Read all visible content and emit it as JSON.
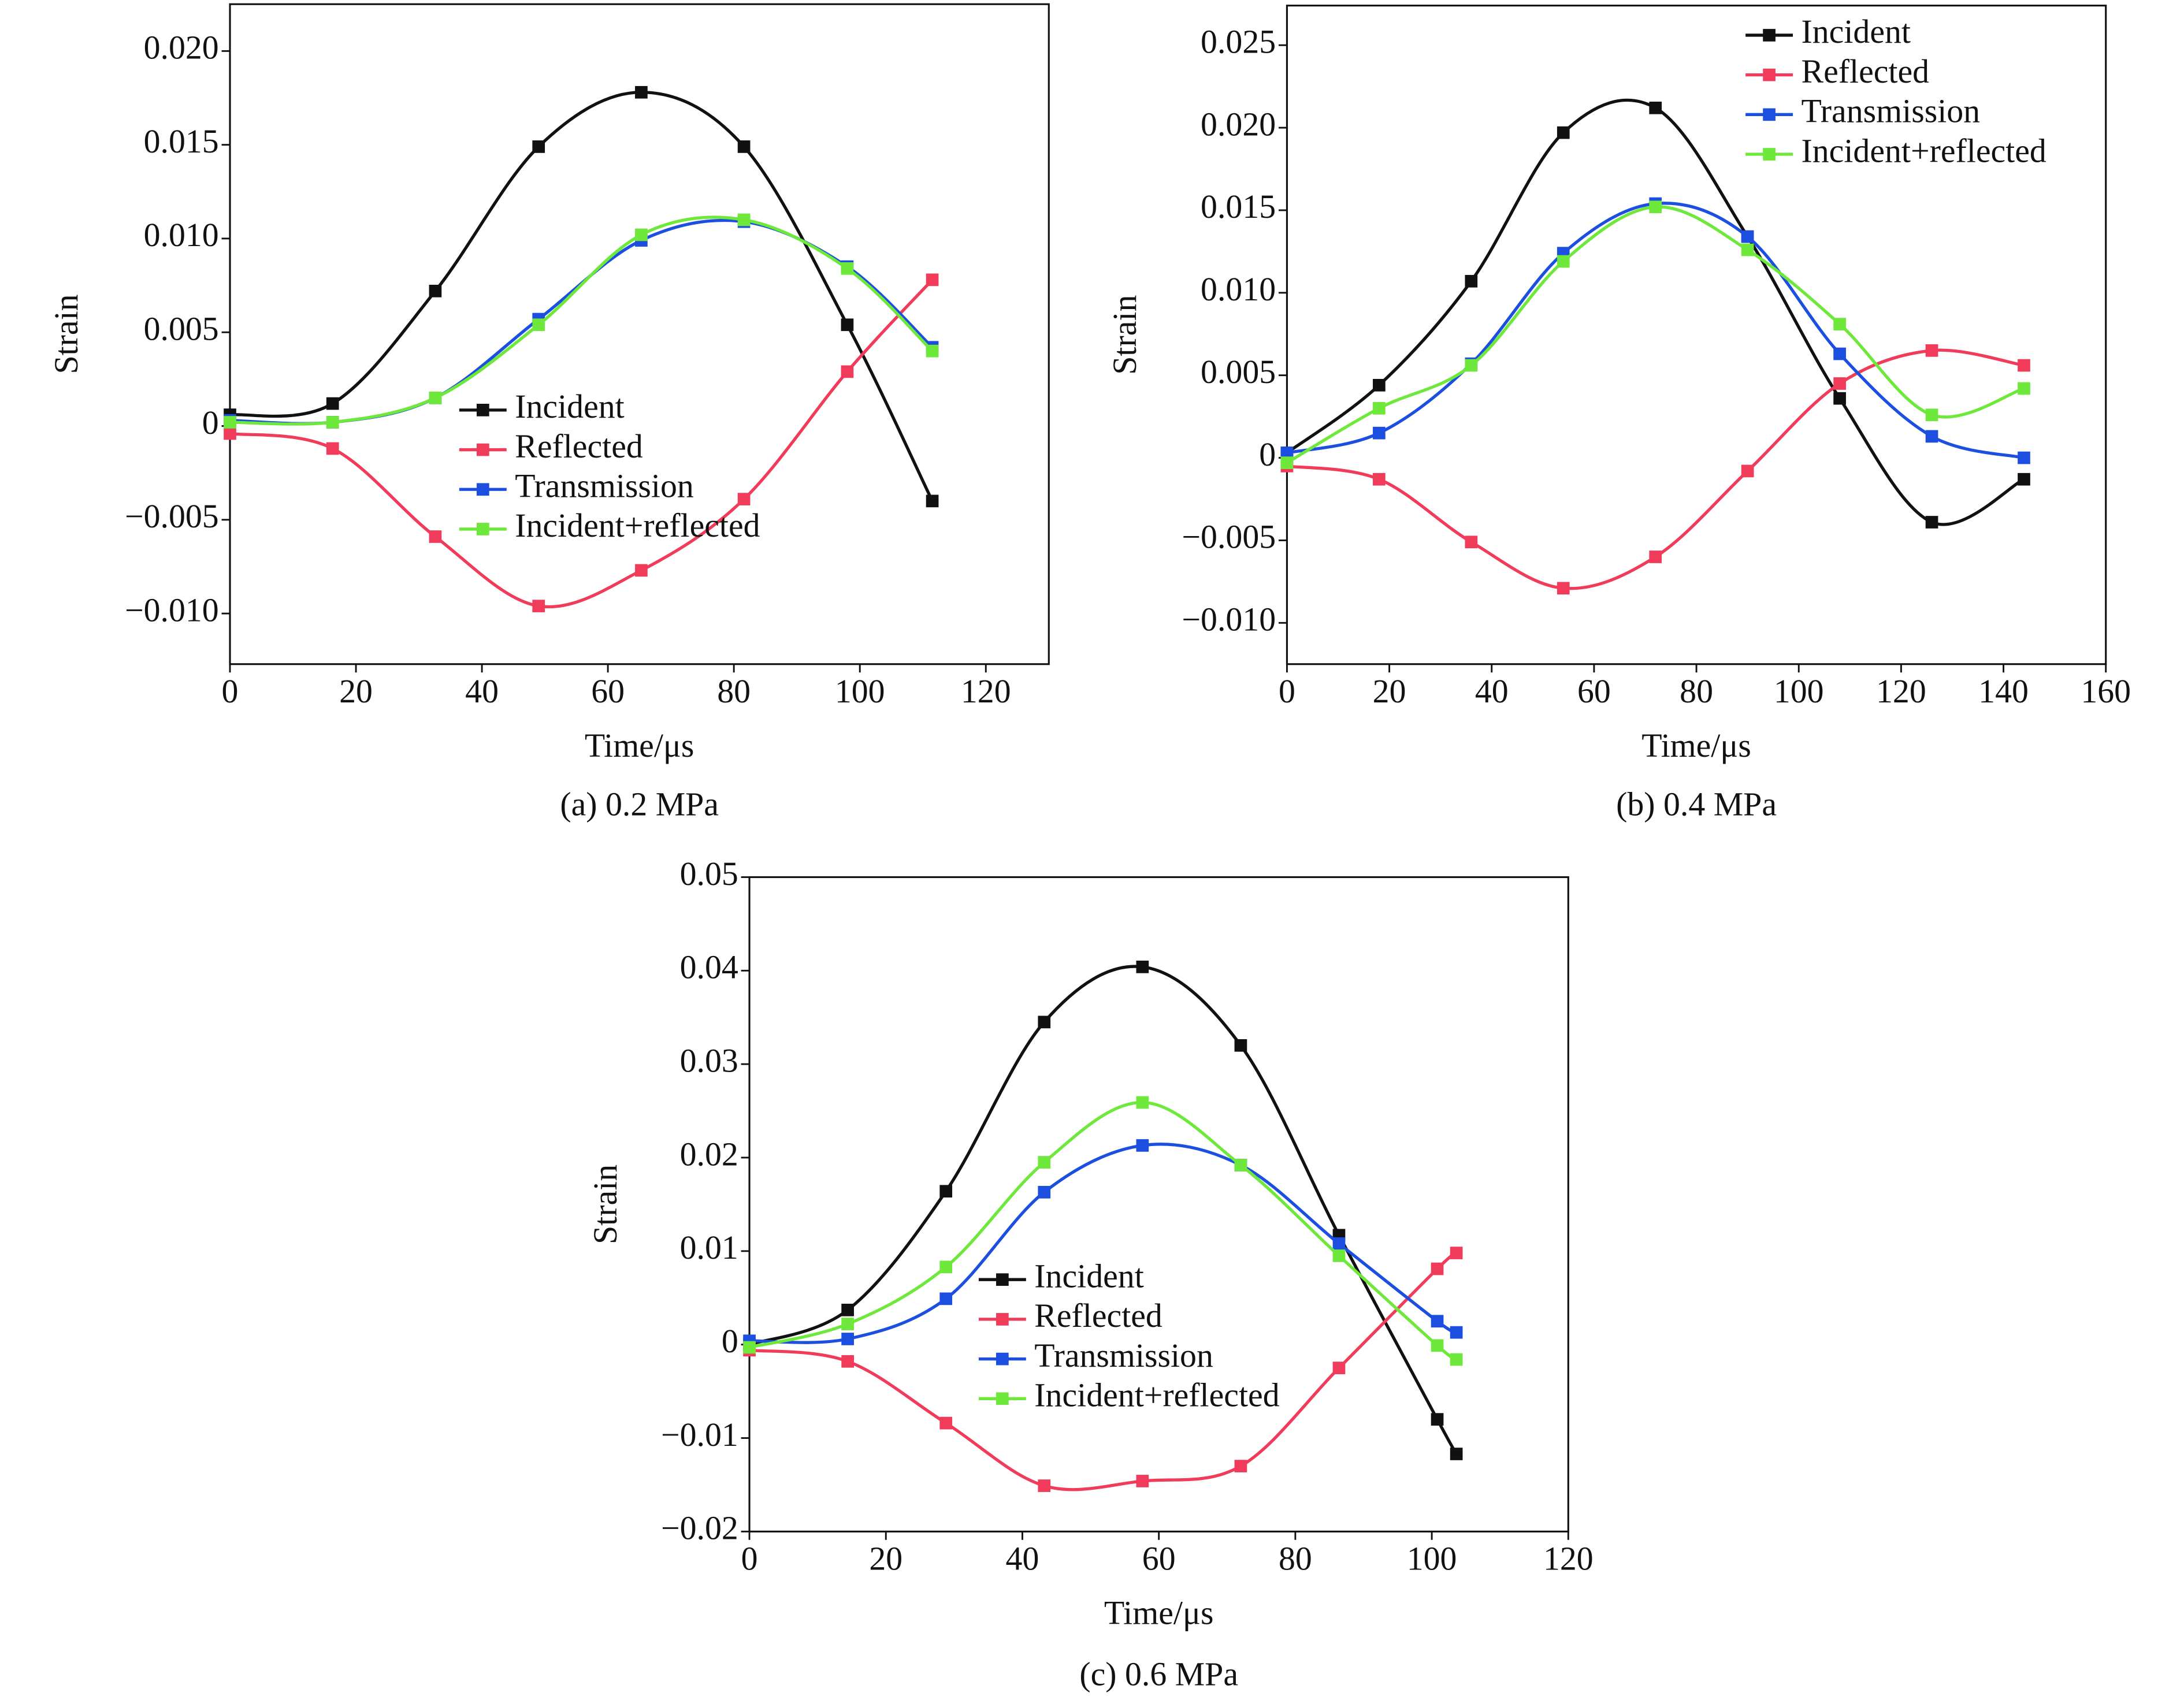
{
  "chart_data": [
    {
      "type": "line",
      "title": "(a) 0.2 MPa",
      "xlabel": "Time/μs",
      "ylabel": "Strain",
      "x": [
        0,
        16.3,
        32.6,
        49,
        65.3,
        81.6,
        98,
        111.5
      ],
      "series": [
        {
          "name": "Incident",
          "color": "#111111",
          "values": [
            0.0006,
            0.0012,
            0.0072,
            0.0149,
            0.0178,
            0.0149,
            0.0054,
            -0.004
          ]
        },
        {
          "name": "Reflected",
          "color": "#f03c5a",
          "values": [
            -0.0004,
            -0.0012,
            -0.0059,
            -0.0096,
            -0.0077,
            -0.0039,
            0.0029,
            0.0078
          ]
        },
        {
          "name": "Transmission",
          "color": "#1c4fe0",
          "values": [
            0.0003,
            0.0002,
            0.0015,
            0.0057,
            0.0099,
            0.0109,
            0.0085,
            0.0042
          ]
        },
        {
          "name": "Incident+reflected",
          "color": "#6ee83a",
          "values": [
            0.0002,
            0.0002,
            0.0015,
            0.0054,
            0.0102,
            0.011,
            0.0084,
            0.004
          ]
        }
      ],
      "xlim": [
        0,
        130
      ],
      "xticks": [
        0,
        20,
        40,
        60,
        80,
        100,
        120
      ],
      "ylim": [
        -0.0127,
        0.0225
      ],
      "yticks": [
        {
          "value": -0.01,
          "label": "−0.010"
        },
        {
          "value": -0.005,
          "label": "−0.005"
        },
        0,
        {
          "value": 0.005,
          "label": "0.005"
        },
        {
          "value": 0.01,
          "label": "0.010"
        },
        {
          "value": 0.015,
          "label": "0.015"
        },
        {
          "value": 0.02,
          "label": "0.020"
        }
      ],
      "legend": "lower center"
    },
    {
      "type": "line",
      "title": "(b) 0.4 MPa",
      "xlabel": "Time/μs",
      "ylabel": "Strain",
      "x": [
        0,
        18,
        36,
        54,
        72,
        90,
        108,
        126,
        144
      ],
      "series": [
        {
          "name": "Incident",
          "color": "#111111",
          "values": [
            0.0003,
            0.0044,
            0.0107,
            0.0197,
            0.0212,
            0.0134,
            0.0036,
            -0.0039,
            -0.0013
          ]
        },
        {
          "name": "Reflected",
          "color": "#f03c5a",
          "values": [
            -0.0005,
            -0.0013,
            -0.0051,
            -0.0079,
            -0.006,
            -0.0008,
            0.0045,
            0.0065,
            0.0056
          ]
        },
        {
          "name": "Transmission",
          "color": "#1c4fe0",
          "values": [
            0.0003,
            0.0015,
            0.0057,
            0.0124,
            0.0154,
            0.0134,
            0.0063,
            0.0013,
            0
          ]
        },
        {
          "name": "Incident+reflected",
          "color": "#6ee83a",
          "values": [
            -0.0003,
            0.003,
            0.0056,
            0.0119,
            0.0152,
            0.0126,
            0.0081,
            0.0026,
            0.0042
          ]
        }
      ],
      "xlim": [
        0,
        160
      ],
      "xticks": [
        0,
        20,
        40,
        60,
        80,
        100,
        120,
        140,
        160
      ],
      "ylim": [
        -0.0125,
        0.0274
      ],
      "yticks": [
        {
          "value": -0.01,
          "label": "−0.010"
        },
        {
          "value": -0.005,
          "label": "−0.005"
        },
        0,
        {
          "value": 0.005,
          "label": "0.005"
        },
        {
          "value": 0.01,
          "label": "0.010"
        },
        {
          "value": 0.015,
          "label": "0.015"
        },
        {
          "value": 0.02,
          "label": "0.020"
        },
        {
          "value": 0.025,
          "label": "0.025"
        }
      ],
      "legend": "upper center"
    },
    {
      "type": "line",
      "title": "(c) 0.6 MPa",
      "xlabel": "Time/μs",
      "ylabel": "Strain",
      "x": [
        0,
        14.4,
        28.8,
        43.2,
        57.6,
        72,
        86.4,
        100.8,
        103.6
      ],
      "series": [
        {
          "name": "Incident",
          "color": "#111111",
          "values": [
            0,
            0.0037,
            0.0164,
            0.0345,
            0.0404,
            0.032,
            0.0117,
            -0.008,
            -0.0117
          ]
        },
        {
          "name": "Reflected",
          "color": "#f03c5a",
          "values": [
            -0.0006,
            -0.0018,
            -0.0084,
            -0.0151,
            -0.0146,
            -0.013,
            -0.0025,
            0.0081,
            0.0098
          ]
        },
        {
          "name": "Transmission",
          "color": "#1c4fe0",
          "values": [
            0.0004,
            0.0006,
            0.0049,
            0.0163,
            0.0213,
            0.0192,
            0.0108,
            0.0025,
            0.0013
          ]
        },
        {
          "name": "Incident+reflected",
          "color": "#6ee83a",
          "values": [
            -0.0003,
            0.0022,
            0.0083,
            0.0195,
            0.0259,
            0.0192,
            0.0095,
            -0.0001,
            -0.0016
          ]
        }
      ],
      "xlim": [
        0,
        120
      ],
      "xticks": [
        0,
        20,
        40,
        60,
        80,
        100,
        120
      ],
      "ylim": [
        -0.02,
        0.05
      ],
      "yticks": [
        {
          "value": -0.02,
          "label": "−0.02"
        },
        {
          "value": -0.01,
          "label": "−0.01"
        },
        0,
        0.01,
        0.02,
        0.03,
        0.04,
        0.05
      ],
      "legend": "lower center"
    }
  ]
}
